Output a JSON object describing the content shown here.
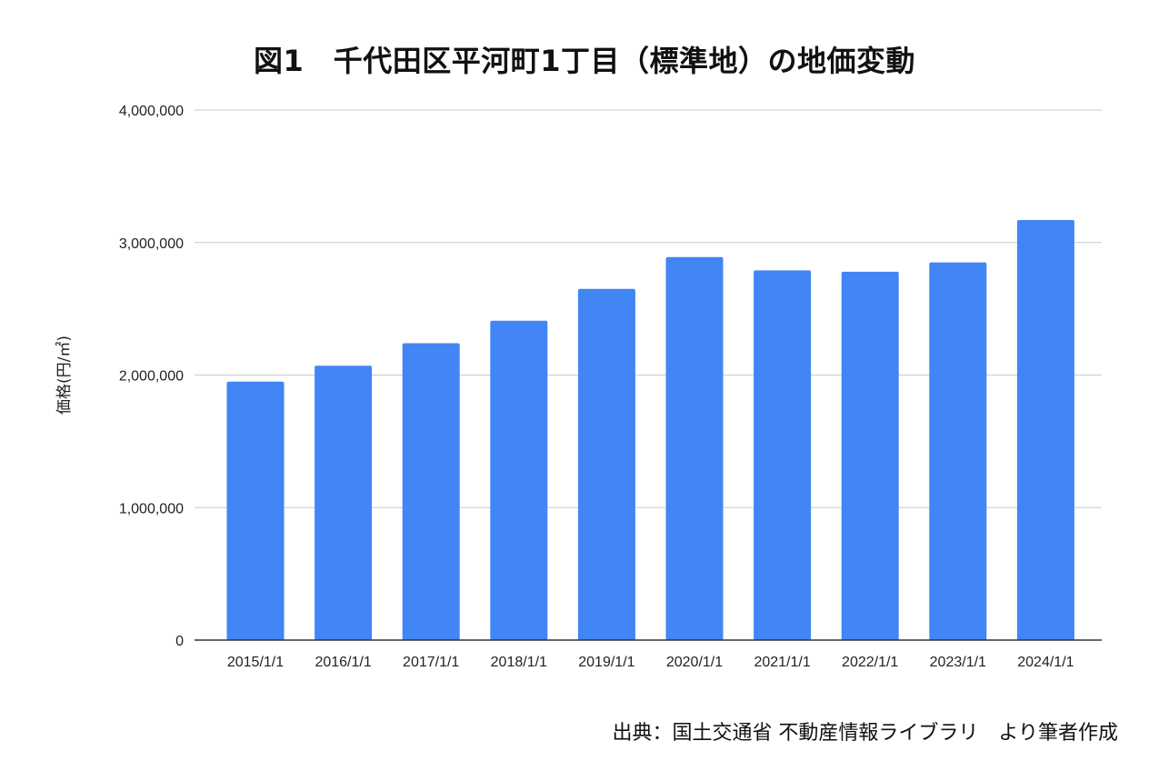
{
  "chart_data": {
    "type": "bar",
    "title": "図1　千代田区平河町1丁目（標準地）の地価変動",
    "xlabel": "",
    "ylabel": "価格(円/㎡)",
    "categories": [
      "2015/1/1",
      "2016/1/1",
      "2017/1/1",
      "2018/1/1",
      "2019/1/1",
      "2020/1/1",
      "2021/1/1",
      "2022/1/1",
      "2023/1/1",
      "2024/1/1"
    ],
    "values": [
      1950000,
      2070000,
      2240000,
      2410000,
      2650000,
      2890000,
      2790000,
      2780000,
      2850000,
      3170000
    ],
    "ylim": [
      0,
      4000000
    ],
    "yticks": [
      "0",
      "1,000,000",
      "2,000,000",
      "3,000,000",
      "4,000,000"
    ],
    "ytick_values": [
      0,
      1000000,
      2000000,
      3000000,
      4000000
    ],
    "grid": true,
    "legend": "none",
    "bar_color": "#4285F4",
    "grid_color": "#CCCCCC",
    "axis_color": "#333333"
  },
  "source_note": "出典：国土交通省 不動産情報ライブラリ　より筆者作成"
}
